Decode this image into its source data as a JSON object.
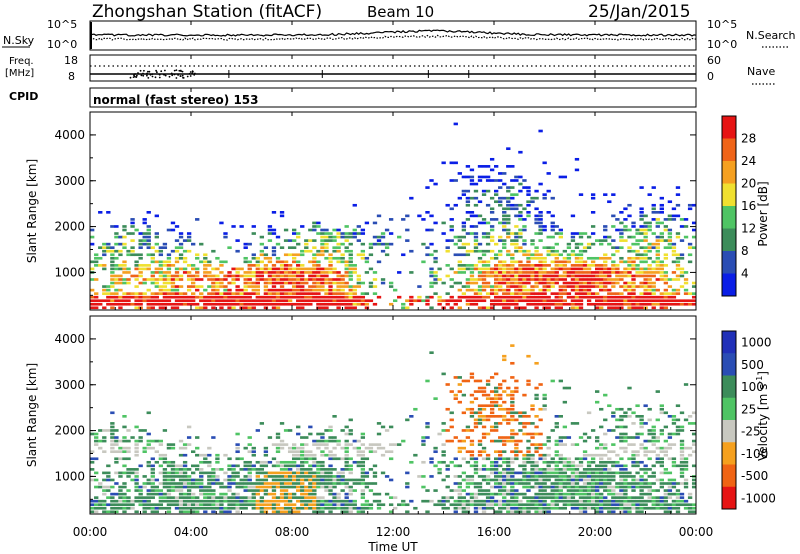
{
  "header": {
    "station": "Zhongshan Station (fitACF)",
    "beam": "Beam 10",
    "date": "25/Jan/2015"
  },
  "noise_panel": {
    "left_label": "N.Sky",
    "right_label": "N.Search",
    "ticks_left": [
      "10^5",
      "10^0"
    ],
    "ticks_right": [
      "10^5",
      "10^0"
    ]
  },
  "freq_panel": {
    "left_label_top": "Freq.",
    "left_label_unit": "[MHz]",
    "ticks_left": [
      "18",
      "8"
    ],
    "ticks_right": [
      "60",
      "0"
    ],
    "right_label": "Nave",
    "cpid_label": "CPID",
    "mode_text": "normal (fast stereo) 153"
  },
  "colors": {
    "power": [
      "#0a1ee6",
      "#2a4db4",
      "#3c8c5a",
      "#4fc464",
      "#f0e030",
      "#f5a020",
      "#ef6418",
      "#e61414"
    ],
    "velocity": [
      "#e61414",
      "#f06414",
      "#f5a01e",
      "#c8c8c0",
      "#4fc464",
      "#3c8c5a",
      "#2a4db4",
      "#2030b8"
    ]
  },
  "chart_data": [
    {
      "type": "heatmap",
      "title": "Power",
      "ylabel": "Slant Range [km]",
      "xlabel": "Time UT",
      "x_ticks": [
        "00:00",
        "04:00",
        "08:00",
        "12:00",
        "16:00",
        "20:00",
        "00:00"
      ],
      "xlim_hours": [
        0,
        24
      ],
      "y_ticks": [
        "4000",
        "3000",
        "2000",
        "1000"
      ],
      "ylim": [
        180,
        4500
      ],
      "colorbar_label": "Power [dB]",
      "colorbar_ticks": [
        "28",
        "24",
        "20",
        "16",
        "12",
        "8",
        "4"
      ],
      "colorbar_range": [
        0,
        32
      ]
    },
    {
      "type": "heatmap",
      "title": "Velocity",
      "ylabel": "Slant Range [km]",
      "xlabel": "Time UT",
      "x_ticks": [
        "00:00",
        "04:00",
        "08:00",
        "12:00",
        "16:00",
        "20:00",
        "00:00"
      ],
      "xlim_hours": [
        0,
        24
      ],
      "y_ticks": [
        "4000",
        "3000",
        "2000",
        "1000"
      ],
      "ylim": [
        180,
        4500
      ],
      "colorbar_label": "Velocity [m s",
      "colorbar_label_sup": "-1",
      "colorbar_label_end": "]",
      "colorbar_ticks": [
        "1000",
        "500",
        "100",
        "25",
        "-25",
        "-100",
        "-500",
        "-1000"
      ]
    }
  ]
}
